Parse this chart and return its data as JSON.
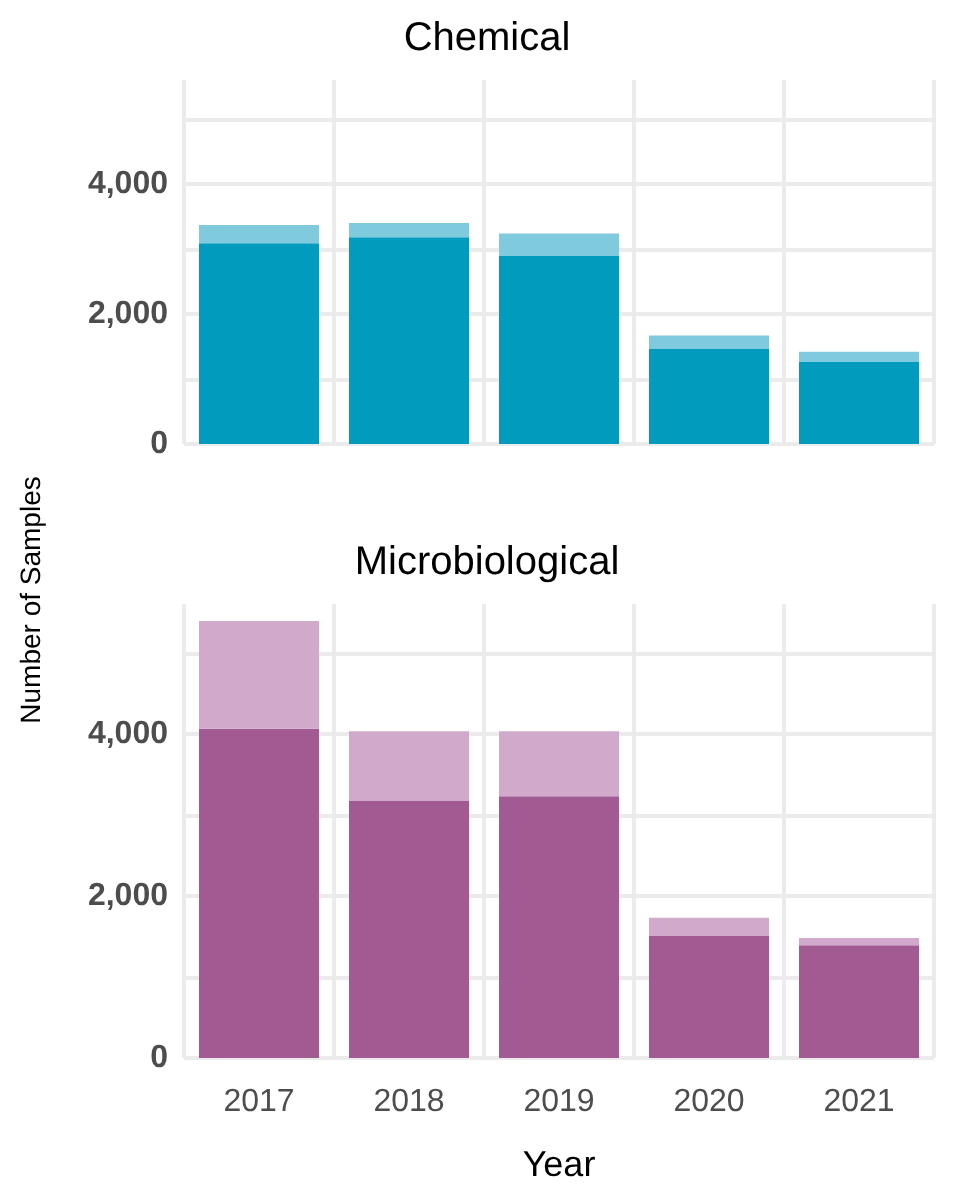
{
  "chart_data": [
    {
      "type": "bar",
      "title": "Chemical",
      "ylabel": "Number of Samples",
      "categories": [
        "2017",
        "2018",
        "2019",
        "2020",
        "2021"
      ],
      "stacked": true,
      "series": [
        {
          "color": "#009bbd",
          "values": [
            3090,
            3180,
            2900,
            1460,
            1270
          ]
        },
        {
          "color": "#7fcbdd",
          "values": [
            280,
            220,
            340,
            210,
            150
          ]
        }
      ],
      "ylim": [
        0,
        5600
      ],
      "yticks": [
        0,
        {
          "value": 1000,
          "label": null
        },
        {
          "value": 2000,
          "label": "2,000"
        },
        {
          "value": 3000,
          "label": null
        },
        {
          "value": 4000,
          "label": "4,000"
        },
        {
          "value": 5000,
          "label": null
        }
      ],
      "grid": true,
      "tick_labels": "y"
    },
    {
      "type": "bar",
      "title": "Microbiological",
      "xlabel": "Year",
      "categories": [
        "2017",
        "2018",
        "2019",
        "2020",
        "2021"
      ],
      "stacked": true,
      "series": [
        {
          "color": "#a25a93",
          "values": [
            4060,
            3170,
            3230,
            1510,
            1390
          ]
        },
        {
          "color": "#d1aacb",
          "values": [
            1330,
            860,
            800,
            220,
            90
          ]
        }
      ],
      "ylim": [
        0,
        5600
      ],
      "yticks": [
        0,
        {
          "value": 1000,
          "label": null
        },
        {
          "value": 2000,
          "label": "2,000"
        },
        {
          "value": 3000,
          "label": null
        },
        {
          "value": 4000,
          "label": "4,000"
        },
        {
          "value": 5000,
          "label": null
        }
      ],
      "grid": true
    }
  ]
}
